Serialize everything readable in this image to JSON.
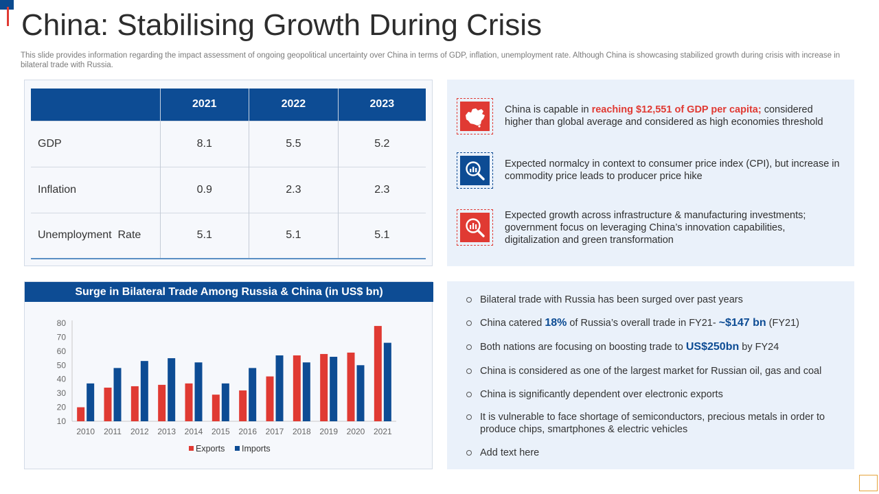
{
  "title": "China: Stabilising Growth During Crisis",
  "subtitle": "This slide provides information regarding the impact assessment of ongoing geopolitical uncertainty over China in terms of GDP, inflation, unemployment rate. Although China is showcasing stabilized growth during crisis with increase in bilateral trade with Russia.",
  "table": {
    "headers": [
      "",
      "2021",
      "2022",
      "2023"
    ],
    "rows": [
      {
        "label": "GDP",
        "values": [
          "8.1",
          "5.5",
          "5.2"
        ]
      },
      {
        "label": "Inflation",
        "values": [
          "0.9",
          "2.3",
          "2.3"
        ]
      },
      {
        "label": "Unemployment  Rate",
        "values": [
          "5.1",
          "5.1",
          "5.1"
        ]
      }
    ]
  },
  "insights": [
    {
      "icon": "china-map-icon",
      "pre": "China is capable in ",
      "highlight": "reaching $12,551 of GDP per capita;",
      "post": " considered higher than global average and considered as high economies threshold"
    },
    {
      "icon": "chart-magnifier-icon",
      "text": "Expected normalcy in context to consumer price index (CPI), but increase in commodity price leads to producer price hike"
    },
    {
      "icon": "growth-magnifier-icon",
      "text": "Expected growth across infrastructure & manufacturing investments; government focus on leveraging China’s innovation capabilities, digitalization and green transformation"
    }
  ],
  "bullets": {
    "b1": "Bilateral trade with Russia has been surged over past years",
    "b2": {
      "pre": "China catered ",
      "pct": "18%",
      "mid": " of Russia’s overall trade in FY21- ",
      "amt": "~$147 bn",
      "post": " (FY21)"
    },
    "b3": {
      "pre": "Both nations are focusing on boosting trade to ",
      "amt": "US$250bn",
      "post": " by FY24"
    },
    "b4": "China is considered as one of the largest market for Russian oil, gas and coal",
    "b5": "China is significantly dependent over electronic exports",
    "b6": "It is vulnerable to face shortage of semiconductors, precious metals in order to produce chips, smartphones & electric vehicles",
    "b7": "Add text here"
  },
  "colors": {
    "exports": "#e03a33",
    "imports": "#0d4c94",
    "primary": "#0d4c94",
    "accent": "#e03a33"
  },
  "chart_data": {
    "type": "bar",
    "title": "Surge in Bilateral Trade Among Russia & China (in US$ bn)",
    "categories": [
      "2010",
      "2011",
      "2012",
      "2013",
      "2014",
      "2015",
      "2016",
      "2017",
      "2018",
      "2019",
      "2020",
      "2021"
    ],
    "series": [
      {
        "name": "Exports",
        "values": [
          20,
          34,
          35,
          36,
          37,
          29,
          32,
          42,
          57,
          58,
          59,
          78
        ]
      },
      {
        "name": "Imports",
        "values": [
          37,
          48,
          53,
          55,
          52,
          37,
          48,
          57,
          52,
          56,
          50,
          66
        ]
      }
    ],
    "yticks": [
      10,
      20,
      30,
      40,
      50,
      60,
      70,
      80
    ],
    "ylim": [
      10,
      80
    ],
    "xlabel": "",
    "ylabel": "",
    "legend": "bottom-center"
  }
}
